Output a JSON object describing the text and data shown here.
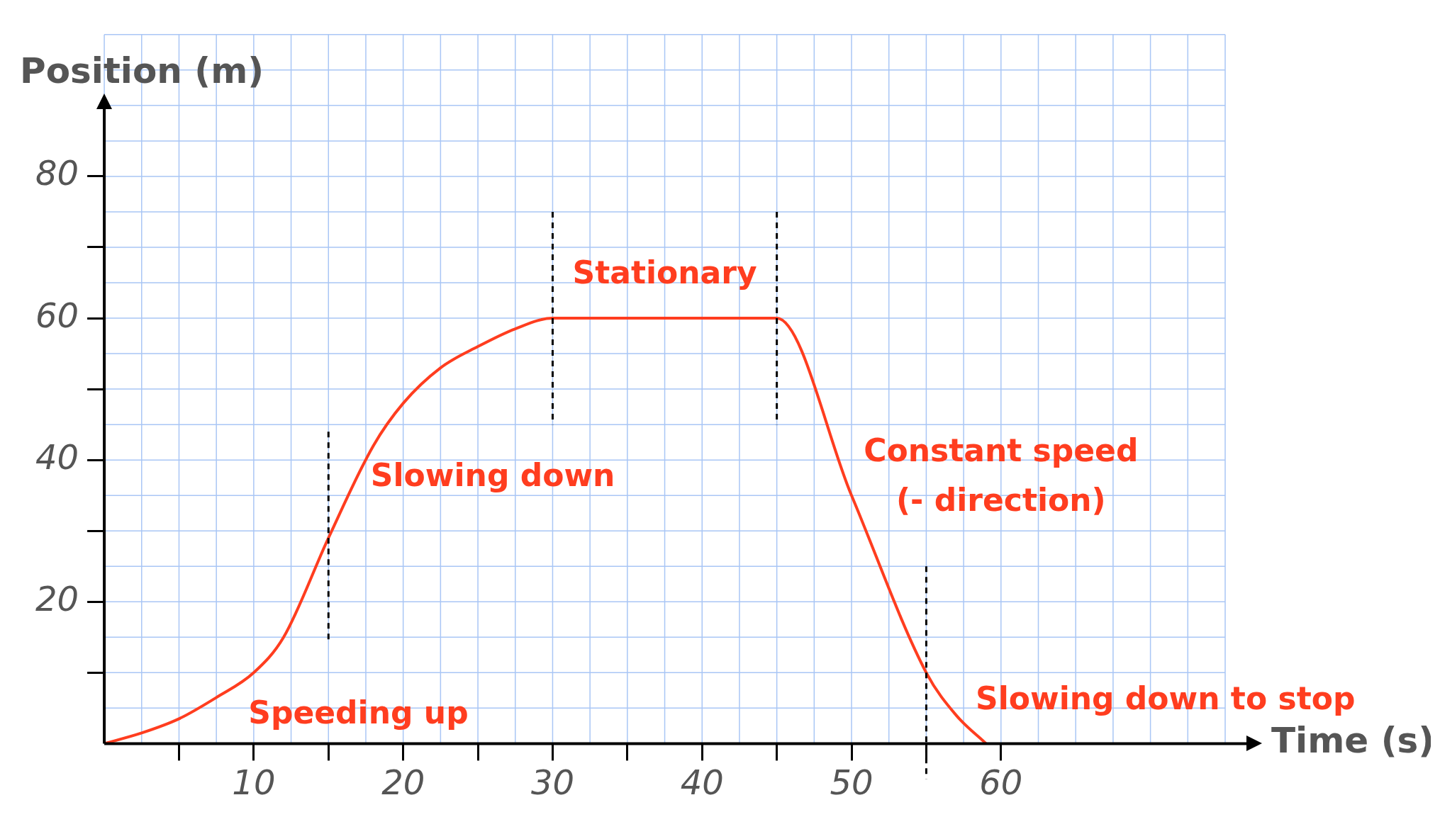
{
  "chart_data": {
    "type": "line",
    "xlabel": "Time (s)",
    "ylabel": "Position (m)",
    "x": [
      0,
      2.5,
      5,
      7.5,
      10,
      12,
      15,
      18,
      20,
      22.5,
      25,
      27.5,
      30,
      45,
      50,
      55,
      57,
      59
    ],
    "series": [
      {
        "color": "#ff3d1f",
        "values": [
          0,
          1.5,
          3.5,
          6.5,
          10,
          15,
          29,
          42,
          48,
          53,
          56,
          58.5,
          60,
          60,
          35,
          10,
          4,
          0
        ]
      }
    ],
    "xlim": [
      0,
      75
    ],
    "ylim": [
      0,
      100
    ],
    "xticks": [
      {
        "value": 5,
        "label": null
      },
      10,
      {
        "value": 15,
        "label": null
      },
      20,
      {
        "value": 25,
        "label": null
      },
      30,
      {
        "value": 35,
        "label": null
      },
      40,
      {
        "value": 45,
        "label": null
      },
      50,
      {
        "value": 55,
        "label": null
      },
      60
    ],
    "yticks": [
      {
        "value": 10,
        "label": null
      },
      20,
      {
        "value": 30,
        "label": null
      },
      40,
      {
        "value": 50,
        "label": null
      },
      60,
      {
        "value": 70,
        "label": null
      },
      80
    ],
    "grid": true,
    "marker": "none",
    "line_style": "solid",
    "ref_lines": [
      {
        "axis": "x",
        "value": 15,
        "color": "#000000",
        "line_style": "dashed"
      },
      {
        "axis": "x",
        "value": 30,
        "color": "#000000",
        "line_style": "dashed"
      },
      {
        "axis": "x",
        "value": 45,
        "color": "#000000",
        "line_style": "dashed"
      },
      {
        "axis": "x",
        "value": 55,
        "color": "#000000",
        "line_style": "dashed"
      }
    ],
    "annotations": [
      "Speeding up",
      "Slowing down",
      "Stationary",
      "Constant speed",
      "(- direction)",
      "Slowing down to stop"
    ]
  }
}
